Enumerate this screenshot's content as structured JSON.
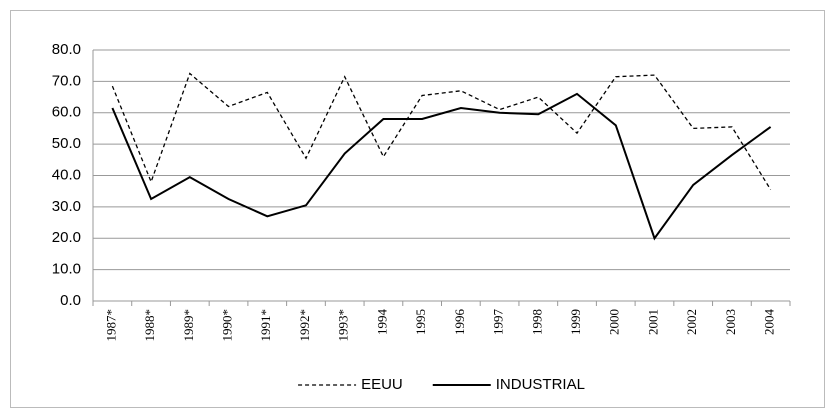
{
  "chart_data": {
    "type": "line",
    "categories": [
      "1987*",
      "1988*",
      "1989*",
      "1990*",
      "1991*",
      "1992*",
      "1993*",
      "1994",
      "1995",
      "1996",
      "1997",
      "1998",
      "1999",
      "2000",
      "2001",
      "2002",
      "2003",
      "2004"
    ],
    "series": [
      {
        "name": "EEUU",
        "color": "#000000",
        "style": "dashed",
        "values": [
          68.5,
          38,
          72.5,
          62,
          66.5,
          45.5,
          71.5,
          46,
          65.5,
          67,
          61,
          65,
          53.5,
          71.5,
          72,
          55,
          55.5,
          35.5
        ]
      },
      {
        "name": "INDUSTRIAL",
        "color": "#000000",
        "style": "solid",
        "values": [
          61.5,
          32.5,
          39.5,
          32.5,
          27,
          30.5,
          47,
          58,
          58,
          61.5,
          60,
          59.5,
          66,
          56,
          20,
          37,
          46.5,
          55.5
        ]
      }
    ],
    "ylim": [
      0,
      80
    ],
    "yticks": [
      {
        "value": 0,
        "label": "0.0"
      },
      {
        "value": 10,
        "label": "10.0"
      },
      {
        "value": 20,
        "label": "20.0"
      },
      {
        "value": 30,
        "label": "30.0"
      },
      {
        "value": 40,
        "label": "40.0"
      },
      {
        "value": 50,
        "label": "50.0"
      },
      {
        "value": 60,
        "label": "60.0"
      },
      {
        "value": 70,
        "label": "70.0"
      },
      {
        "value": 80,
        "label": "80.0"
      }
    ],
    "grid": true,
    "legend": "bottom"
  }
}
